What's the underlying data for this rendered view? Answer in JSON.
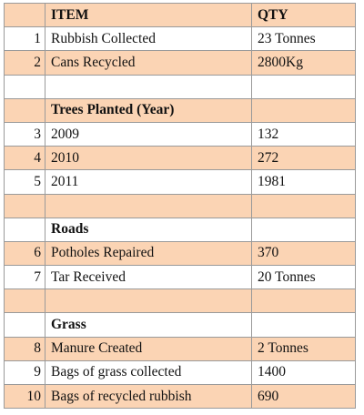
{
  "table": {
    "header": {
      "item": "ITEM",
      "qty": "QTY"
    },
    "sections": [
      {
        "rows": [
          {
            "num": 1,
            "item": "Rubbish Collected",
            "qty": "23 Tonnes"
          },
          {
            "num": 2,
            "item": "Cans Recycled",
            "qty": "2800Kg"
          }
        ]
      },
      {
        "title": "Trees Planted (Year)",
        "rows": [
          {
            "num": 3,
            "item": "2009",
            "qty": 132
          },
          {
            "num": 4,
            "item": "2010",
            "qty": 272
          },
          {
            "num": 5,
            "item": "2011",
            "qty": 1981
          }
        ]
      },
      {
        "title": "Roads",
        "rows": [
          {
            "num": 6,
            "item": "Potholes Repaired",
            "qty": 370
          },
          {
            "num": 7,
            "item": "Tar Received",
            "qty": "20 Tonnes"
          }
        ]
      },
      {
        "title": "Grass",
        "rows": [
          {
            "num": 8,
            "item": "Manure Created",
            "qty": "2 Tonnes"
          },
          {
            "num": 9,
            "item": "Bags of grass collected",
            "qty": 1400
          },
          {
            "num": 10,
            "item": "Bags of recycled rubbish",
            "qty": 690
          }
        ]
      }
    ]
  }
}
